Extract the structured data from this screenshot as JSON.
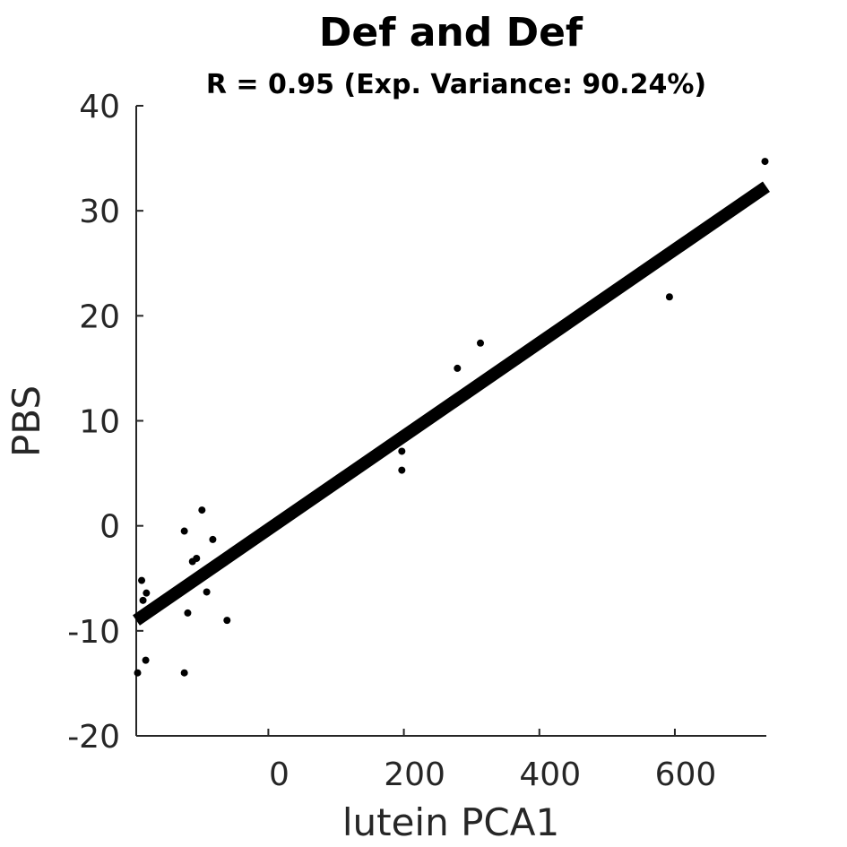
{
  "chart_data": {
    "type": "scatter",
    "title": "Def and Def",
    "subtitle": "R = 0.95 (Exp. Variance: 90.24%)",
    "xlabel": "lutein PCA1",
    "ylabel": "PBS",
    "xlim": [
      -195,
      735
    ],
    "ylim": [
      -20,
      40
    ],
    "xticks": [
      0,
      200,
      400,
      600
    ],
    "xtick_labels": [
      "0",
      "200",
      "400",
      "600"
    ],
    "yticks": [
      -20,
      -10,
      0,
      10,
      20,
      30,
      40
    ],
    "ytick_labels": [
      "-20",
      "-10",
      "0",
      "10",
      "20",
      "30",
      "40"
    ],
    "grid": false,
    "legend": "none",
    "marker_color": "#000000",
    "line_color": "#000000",
    "points": [
      {
        "x": -193,
        "y": -14.0
      },
      {
        "x": -187,
        "y": -5.2
      },
      {
        "x": -185,
        "y": -7.1
      },
      {
        "x": -180,
        "y": -6.4
      },
      {
        "x": -181,
        "y": -12.8
      },
      {
        "x": -124,
        "y": -0.5
      },
      {
        "x": -124,
        "y": -14.0
      },
      {
        "x": -119,
        "y": -8.3
      },
      {
        "x": -112,
        "y": -3.4
      },
      {
        "x": -106,
        "y": -3.1
      },
      {
        "x": -98,
        "y": 1.5
      },
      {
        "x": -91,
        "y": -6.3
      },
      {
        "x": -82,
        "y": -1.3
      },
      {
        "x": -61,
        "y": -9.0
      },
      {
        "x": 197,
        "y": 7.1
      },
      {
        "x": 197,
        "y": 5.3
      },
      {
        "x": 279,
        "y": 15.0
      },
      {
        "x": 313,
        "y": 17.4
      },
      {
        "x": 592,
        "y": 21.8
      },
      {
        "x": 733,
        "y": 34.7
      }
    ],
    "fit_line": {
      "x": [
        -195,
        735
      ],
      "y": [
        -9.0,
        32.3
      ]
    }
  }
}
